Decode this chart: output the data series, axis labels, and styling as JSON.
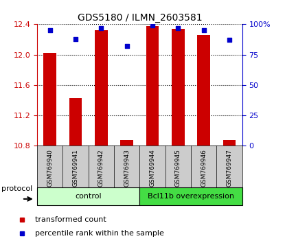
{
  "title": "GDS5180 / ILMN_2603581",
  "samples": [
    "GSM769940",
    "GSM769941",
    "GSM769942",
    "GSM769943",
    "GSM769944",
    "GSM769945",
    "GSM769946",
    "GSM769947"
  ],
  "bar_values": [
    12.02,
    11.43,
    12.32,
    10.88,
    12.38,
    12.34,
    12.26,
    10.88
  ],
  "percentile_values": [
    95,
    88,
    97,
    82,
    99,
    97,
    95,
    87
  ],
  "ylim": [
    10.8,
    12.4
  ],
  "yticks": [
    10.8,
    11.2,
    11.6,
    12.0,
    12.4
  ],
  "right_yticks": [
    0,
    25,
    50,
    75,
    100
  ],
  "right_ylim": [
    0,
    100
  ],
  "bar_color": "#cc0000",
  "dot_color": "#0000cc",
  "bar_width": 0.5,
  "groups": [
    {
      "label": "control",
      "indices": [
        0,
        1,
        2,
        3
      ],
      "color": "#ccffcc",
      "edge_color": "#00aa00"
    },
    {
      "label": "Bcl11b overexpression",
      "indices": [
        4,
        5,
        6,
        7
      ],
      "color": "#44dd44",
      "edge_color": "#00aa00"
    }
  ],
  "protocol_label": "protocol",
  "legend_items": [
    {
      "label": "transformed count",
      "color": "#cc0000"
    },
    {
      "label": "percentile rank within the sample",
      "color": "#0000cc"
    }
  ],
  "left_tick_color": "#cc0000",
  "right_tick_color": "#0000cc",
  "grid_color": "black",
  "label_bg_color": "#cccccc",
  "title_fontsize": 10,
  "tick_fontsize": 8,
  "sample_fontsize": 6.5,
  "group_fontsize": 8,
  "legend_fontsize": 8
}
